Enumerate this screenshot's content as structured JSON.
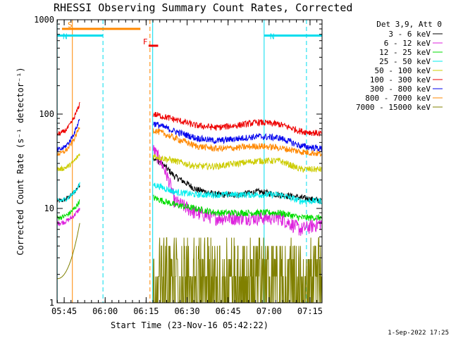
{
  "chart_data": {
    "type": "line",
    "title": "RHESSI Observing Summary Count Rates, Corrected",
    "xlabel": "Start Time (23-Nov-16 05:42:22)",
    "ylabel": "Corrected Count Rate (s⁻¹ detector⁻¹)",
    "yscale": "log",
    "ylim": [
      1,
      1000
    ],
    "xlim_minutes": [
      0,
      97
    ],
    "x_ticks": [
      {
        "label": "05:45",
        "min": 2.6
      },
      {
        "label": "06:00",
        "min": 17.6
      },
      {
        "label": "06:15",
        "min": 32.6
      },
      {
        "label": "06:30",
        "min": 47.6
      },
      {
        "label": "06:45",
        "min": 62.6
      },
      {
        "label": "07:00",
        "min": 77.6
      },
      {
        "label": "07:15",
        "min": 92.6
      }
    ],
    "y_ticks": [
      {
        "label": "1",
        "value": 1
      },
      {
        "label": "10",
        "value": 10
      },
      {
        "label": "100",
        "value": 100
      },
      {
        "label": "1000",
        "value": 1000
      }
    ],
    "legend_title": "Det 3,9, Att 0",
    "legend_position": "right",
    "footer_date": "1-Sep-2022 17:25",
    "series": [
      {
        "name": "3 - 6 keV",
        "color": "#000000",
        "pre": [
          12,
          18
        ],
        "post": [
          35,
          22,
          16,
          14,
          14,
          15,
          14,
          13,
          12
        ]
      },
      {
        "name": "6 - 12 keV",
        "color": "#dd22dd",
        "pre": [
          7,
          10
        ],
        "post": [
          42,
          12,
          9,
          8,
          8,
          8,
          8,
          6,
          7
        ]
      },
      {
        "name": "12 - 25 keV",
        "color": "#00dd00",
        "pre": [
          8,
          12
        ],
        "post": [
          13,
          11,
          10,
          9,
          9,
          9,
          9,
          8,
          8
        ]
      },
      {
        "name": "25 - 50 keV",
        "color": "#00eeee",
        "pre": [
          12,
          18
        ],
        "post": [
          18,
          15,
          14,
          14,
          14,
          14,
          14,
          12,
          12
        ]
      },
      {
        "name": "50 - 100 keV",
        "color": "#cccc00",
        "pre": [
          26,
          38
        ],
        "post": [
          36,
          32,
          28,
          28,
          30,
          32,
          32,
          26,
          26
        ]
      },
      {
        "name": "100 - 300 keV",
        "color": "#ee0000",
        "pre": [
          62,
          130
        ],
        "post": [
          100,
          88,
          76,
          72,
          76,
          82,
          78,
          66,
          62
        ]
      },
      {
        "name": "300 - 800 keV",
        "color": "#0000ee",
        "pre": [
          42,
          90
        ],
        "post": [
          80,
          66,
          56,
          52,
          55,
          58,
          56,
          46,
          43
        ]
      },
      {
        "name": "800 - 7000 keV",
        "color": "#ff8800",
        "pre": [
          38,
          75
        ],
        "post": [
          68,
          56,
          46,
          43,
          44,
          46,
          44,
          40,
          38
        ]
      },
      {
        "name": "7000 - 15000 keV",
        "color": "#808000",
        "pre": [
          1.8,
          7
        ],
        "post": [
          2.2,
          2.2,
          2.2,
          2.2,
          2.2,
          2.2,
          2.2,
          2.2,
          1.8
        ]
      }
    ],
    "flags": [
      {
        "label": "S",
        "color": "#ff8800",
        "y": 800,
        "start": 1.8,
        "end": 30.5
      },
      {
        "label": "N",
        "color": "#00ddee",
        "y": 680,
        "start": 0,
        "end": 16.8
      },
      {
        "label": "N",
        "color": "#00ddee",
        "y": 680,
        "start": 75.8,
        "end": 97
      },
      {
        "label": "F",
        "color": "#ee0000",
        "y": 530,
        "start": 33.5,
        "end": 37
      }
    ],
    "vlines": [
      {
        "min": 0.05,
        "color": "#00ddee",
        "dashed": false
      },
      {
        "min": 5.6,
        "color": "#ff8800",
        "dashed": false
      },
      {
        "min": 16.8,
        "color": "#00ddee",
        "dashed": true
      },
      {
        "min": 34.0,
        "color": "#ff8800",
        "dashed": true
      },
      {
        "min": 35.0,
        "color": "#00ddee",
        "dashed": false
      },
      {
        "min": 75.8,
        "color": "#00ddee",
        "dashed": false
      },
      {
        "min": 91.3,
        "color": "#00ddee",
        "dashed": true
      }
    ],
    "observing_gaps_minutes": [
      [
        8.3,
        35.0
      ]
    ]
  }
}
